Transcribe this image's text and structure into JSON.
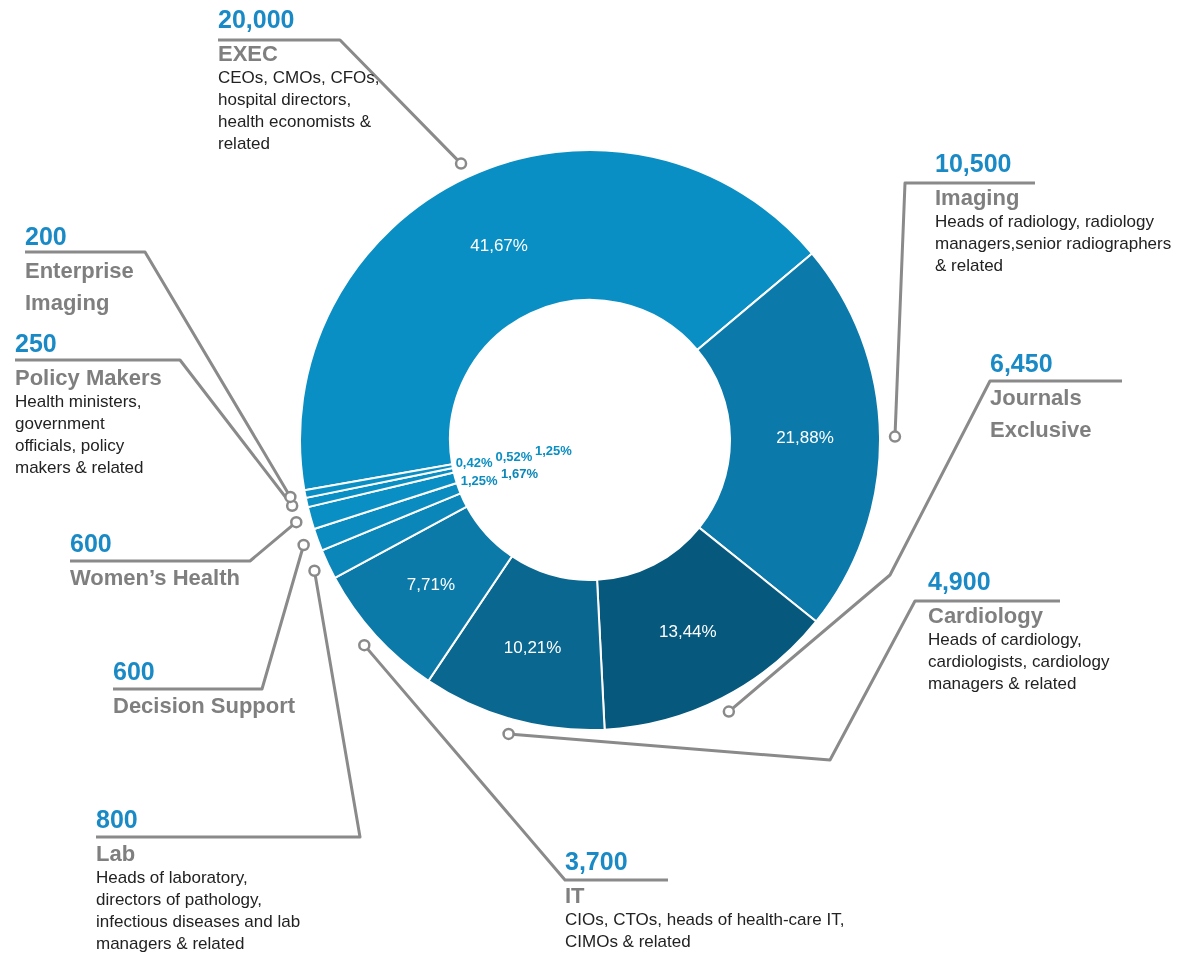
{
  "chart_data": {
    "type": "donut",
    "categories": [
      "EXEC",
      "Imaging",
      "Journals Exclusive",
      "Cardiology",
      "IT",
      "Lab",
      "Decision Support",
      "Women’s Health",
      "Policy Makers",
      "Enterprise Imaging"
    ],
    "values": [
      41.67,
      21.88,
      13.44,
      10.21,
      7.71,
      1.67,
      1.25,
      1.25,
      0.52,
      0.42
    ],
    "value_labels": [
      "41,67%",
      "21,88%",
      "13,44%",
      "10,21%",
      "7,71%",
      "1,67%",
      "1,25%",
      "1,25%",
      "0,52%",
      "0,42%"
    ],
    "colors": [
      "#0a8fc4",
      "#0b7aab",
      "#06587d",
      "#0a6890",
      "#0b7aa8",
      "#0b86b8",
      "#0a8cc0",
      "#0a8fc4",
      "#0a8fc4",
      "#0a8fc4"
    ],
    "annotations": [
      {
        "text": "20,000",
        "x": "EXEC"
      },
      {
        "text": "CEOs, CMOs, CFOs, hospital directors, health economists & related",
        "x": "EXEC"
      },
      {
        "text": "10,500",
        "x": "Imaging"
      },
      {
        "text": "Heads of radiology, radiology managers,senior radiographers & related",
        "x": "Imaging"
      },
      {
        "text": "6,450",
        "x": "Journals Exclusive"
      },
      {
        "text": "4,900",
        "x": "Cardiology"
      },
      {
        "text": "Heads of cardiology, cardiologists, cardiology managers & related",
        "x": "Cardiology"
      },
      {
        "text": "3,700",
        "x": "IT"
      },
      {
        "text": "CIOs, CTOs, heads of health-care IT, CIMOs & related",
        "x": "IT"
      },
      {
        "text": "800",
        "x": "Lab"
      },
      {
        "text": "Heads of laboratory, directors of pathology, infectious diseases and lab managers & related",
        "x": "Lab"
      },
      {
        "text": "600",
        "x": "Decision Support"
      },
      {
        "text": "600",
        "x": "Women’s Health"
      },
      {
        "text": "250",
        "x": "Policy Makers"
      },
      {
        "text": "Health ministers, government officials, policy makers & related",
        "x": "Policy Makers"
      },
      {
        "text": "200",
        "x": "Enterprise Imaging"
      }
    ]
  }
}
